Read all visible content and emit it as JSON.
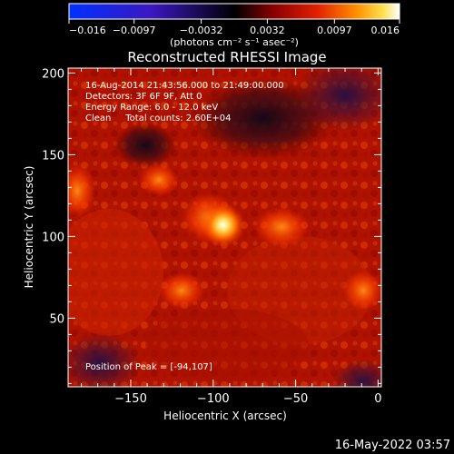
{
  "chart_data": {
    "type": "heatmap",
    "title": "Reconstructed RHESSI Image",
    "xlabel": "Heliocentric X (arcsec)",
    "ylabel": "Heliocentric Y (arcsec)",
    "xlim": [
      -188,
      2
    ],
    "ylim": [
      8,
      203
    ],
    "x_ticks": [
      -150,
      -100,
      -50,
      0
    ],
    "x_tick_labels": [
      "−150",
      "−100",
      "−50",
      "0"
    ],
    "y_ticks": [
      50,
      100,
      150,
      200
    ],
    "y_tick_labels": [
      "50",
      "100",
      "150",
      "200"
    ],
    "colorbar": {
      "range": [
        -0.016,
        0.016
      ],
      "ticks": [
        -0.016,
        -0.0097,
        -0.0032,
        0.0032,
        0.0097,
        0.016
      ],
      "tick_labels": [
        "−0.016",
        "−0.0097",
        "−0.0032",
        "0.0032",
        "0.0097",
        "0.016"
      ],
      "units_label": "(photons cm⁻² s⁻¹ asec⁻²)"
    },
    "annotations": [
      "16-Aug-2014 21:43:56.000 to 21:49:00.000",
      "Detectors: 3F 6F 9F, Att 0",
      "Energy Range: 6.0 - 12.0 keV",
      "Clean     Total counts: 2.60E+04"
    ],
    "peak_label": "Position of Peak = [-94,107]",
    "peak_position": [
      -94,
      107
    ],
    "grid": false,
    "colormap": "blue-black-red-yellow-white"
  },
  "footer": {
    "timestamp": "16-May-2022 03:57"
  }
}
